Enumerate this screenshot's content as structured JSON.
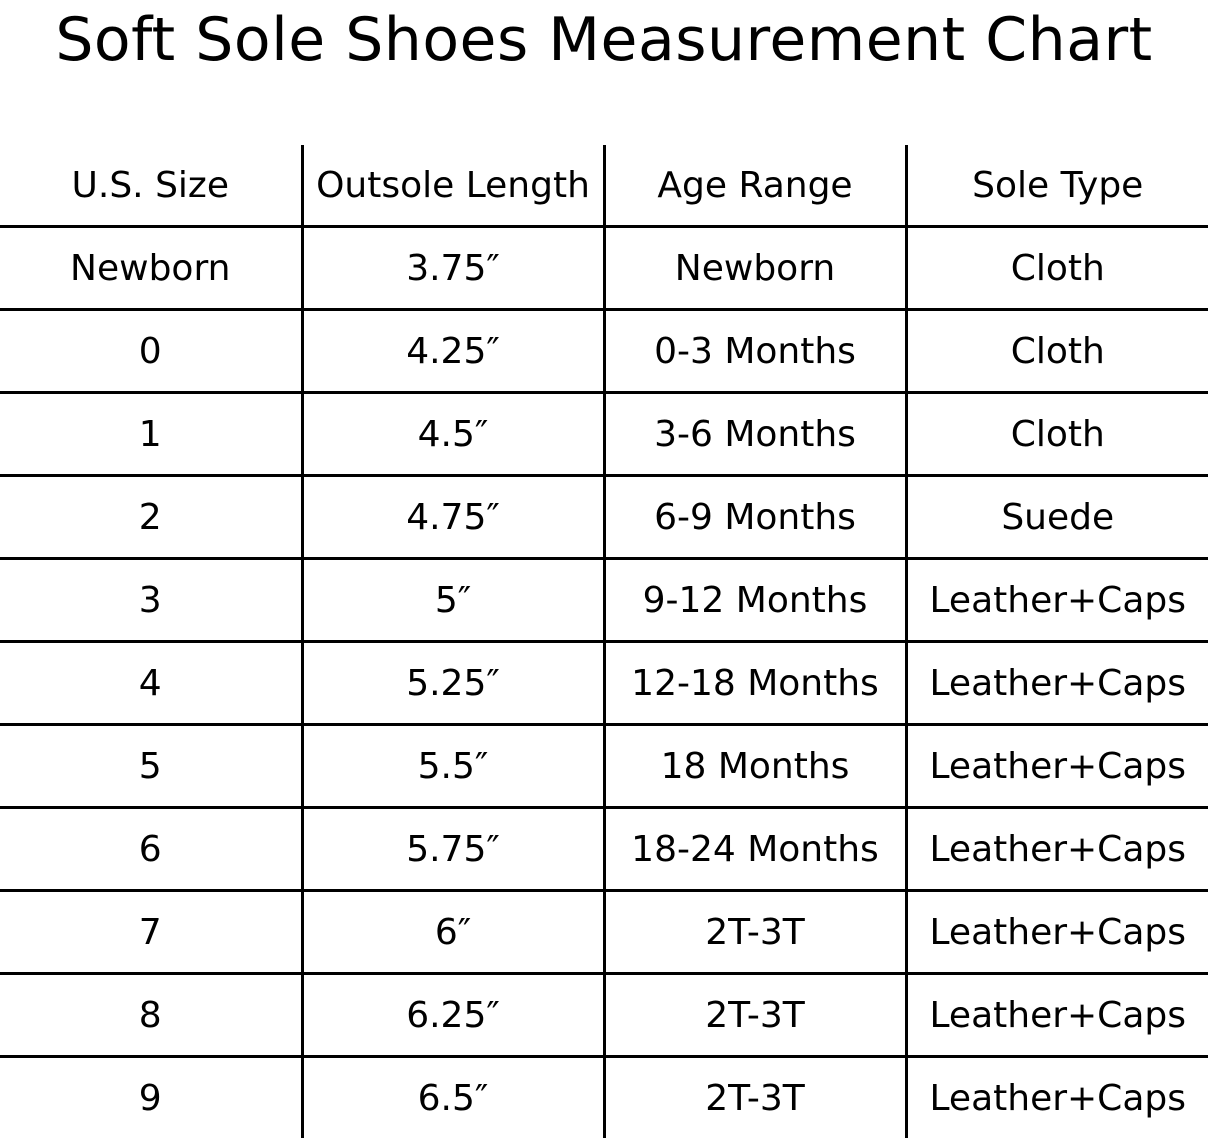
{
  "title": "Soft Sole Shoes Measurement Chart",
  "table": {
    "headers": [
      "U.S. Size",
      "Outsole Length",
      "Age Range",
      "Sole Type"
    ],
    "rows": [
      [
        "Newborn",
        "3.75″",
        "Newborn",
        "Cloth"
      ],
      [
        "0",
        "4.25″",
        "0-3 Months",
        "Cloth"
      ],
      [
        "1",
        "4.5″",
        "3-6 Months",
        "Cloth"
      ],
      [
        "2",
        "4.75″",
        "6-9 Months",
        "Suede"
      ],
      [
        "3",
        "5″",
        "9-12 Months",
        "Leather+Caps"
      ],
      [
        "4",
        "5.25″",
        "12-18 Months",
        "Leather+Caps"
      ],
      [
        "5",
        "5.5″",
        "18 Months",
        "Leather+Caps"
      ],
      [
        "6",
        "5.75″",
        "18-24 Months",
        "Leather+Caps"
      ],
      [
        "7",
        "6″",
        "2T-3T",
        "Leather+Caps"
      ],
      [
        "8",
        "6.25″",
        "2T-3T",
        "Leather+Caps"
      ],
      [
        "9",
        "6.5″",
        "2T-3T",
        "Leather+Caps"
      ]
    ]
  }
}
